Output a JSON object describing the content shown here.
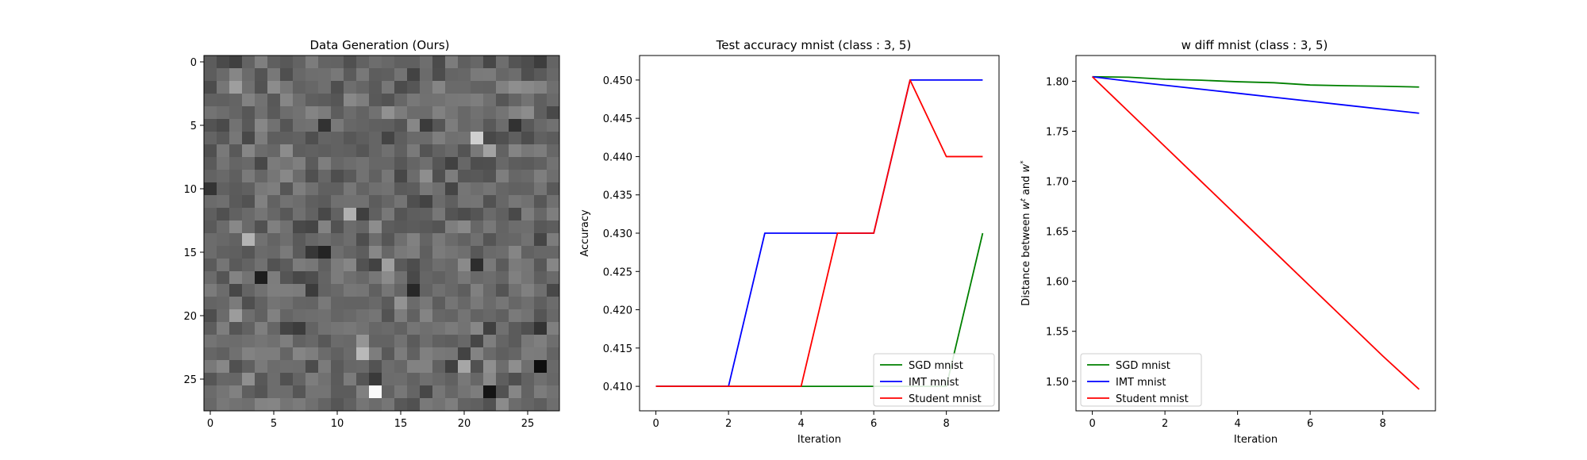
{
  "chart_data": [
    {
      "type": "heatmap",
      "title": "Data Generation (Ours)",
      "xlabel": "",
      "ylabel": "",
      "grid_size": [
        28,
        28
      ],
      "colormap": "gray",
      "xlim": [
        -0.5,
        27.5
      ],
      "ylim": [
        27.5,
        -0.5
      ],
      "xticks": [
        0,
        5,
        10,
        15,
        20,
        25
      ],
      "yticks": [
        0,
        5,
        10,
        15,
        20,
        25
      ],
      "values": [
        [
          92,
          74,
          64,
          99,
          127,
          95,
          88,
          99,
          124,
          100,
          99,
          80,
          98,
          109,
          104,
          96,
          96,
          110,
          75,
          124,
          95,
          103,
          71,
          110,
          84,
          77,
          61,
          100
        ],
        [
          93,
          106,
          134,
          107,
          84,
          120,
          79,
          104,
          110,
          111,
          120,
          91,
          120,
          93,
          95,
          115,
          67,
          107,
          77,
          101,
          103,
          122,
          123,
          103,
          109,
          79,
          90,
          104
        ],
        [
          76,
          118,
          158,
          112,
          82,
          140,
          119,
          98,
          103,
          111,
          79,
          110,
          102,
          90,
          119,
          76,
          86,
          112,
          133,
          106,
          106,
          99,
          98,
          129,
          142,
          137,
          131,
          111
        ],
        [
          97,
          96,
          100,
          130,
          114,
          88,
          134,
          111,
          95,
          92,
          86,
          136,
          126,
          89,
          83,
          103,
          120,
          113,
          114,
          120,
          121,
          126,
          112,
          86,
          101,
          115,
          95,
          106
        ],
        [
          115,
          109,
          101,
          87,
          112,
          90,
          109,
          114,
          132,
          124,
          93,
          108,
          99,
          113,
          145,
          124,
          108,
          108,
          129,
          117,
          104,
          113,
          106,
          116,
          131,
          140,
          95,
          73
        ],
        [
          83,
          74,
          114,
          89,
          135,
          113,
          85,
          112,
          114,
          50,
          121,
          103,
          100,
          96,
          95,
          85,
          135,
          59,
          86,
          125,
          104,
          110,
          89,
          108,
          50,
          89,
          105,
          113
        ],
        [
          100,
          89,
          119,
          72,
          125,
          94,
          95,
          98,
          79,
          100,
          98,
          87,
          94,
          101,
          68,
          94,
          106,
          107,
          126,
          112,
          114,
          208,
          72,
          80,
          95,
          77,
          97,
          92
        ],
        [
          80,
          121,
          89,
          134,
          108,
          103,
          140,
          94,
          97,
          94,
          98,
          96,
          86,
          101,
          112,
          96,
          122,
          84,
          98,
          106,
          84,
          121,
          162,
          98,
          132,
          120,
          125,
          103
        ],
        [
          90,
          116,
          101,
          105,
          72,
          123,
          117,
          127,
          91,
          126,
          103,
          109,
          114,
          103,
          103,
          87,
          101,
          111,
          86,
          65,
          103,
          78,
          79,
          104,
          93,
          91,
          97,
          114
        ],
        [
          99,
          105,
          95,
          122,
          102,
          118,
          136,
          108,
          80,
          103,
          78,
          90,
          114,
          97,
          119,
          71,
          108,
          142,
          80,
          125,
          87,
          89,
          83,
          126,
          103,
          106,
          126,
          110
        ],
        [
          52,
          97,
          91,
          96,
          121,
          126,
          86,
          126,
          112,
          96,
          96,
          119,
          100,
          111,
          114,
          90,
          93,
          120,
          111,
          69,
          117,
          110,
          117,
          102,
          97,
          98,
          117,
          89
        ],
        [
          107,
          111,
          90,
          82,
          129,
          98,
          114,
          109,
          95,
          91,
          112,
          113,
          113,
          92,
          102,
          116,
          79,
          67,
          107,
          95,
          116,
          117,
          82,
          103,
          119,
          113,
          87,
          112
        ],
        [
          95,
          80,
          97,
          106,
          117,
          103,
          88,
          112,
          98,
          72,
          98,
          176,
          63,
          96,
          120,
          85,
          94,
          96,
          119,
          84,
          76,
          85,
          106,
          96,
          73,
          125,
          103,
          126
        ],
        [
          90,
          107,
          136,
          106,
          81,
          128,
          113,
          73,
          69,
          131,
          82,
          108,
          101,
          141,
          93,
          89,
          92,
          89,
          84,
          126,
          137,
          103,
          120,
          100,
          109,
          110,
          88,
          93
        ],
        [
          108,
          104,
          98,
          180,
          113,
          100,
          110,
          90,
          103,
          109,
          101,
          109,
          78,
          109,
          86,
          111,
          129,
          100,
          121,
          107,
          98,
          112,
          85,
          101,
          103,
          114,
          69,
          124
        ],
        [
          108,
          97,
          95,
          86,
          107,
          104,
          122,
          91,
          55,
          36,
          110,
          101,
          93,
          135,
          103,
          121,
          126,
          95,
          123,
          117,
          111,
          88,
          106,
          109,
          133,
          98,
          103,
          103
        ],
        [
          91,
          117,
          90,
          99,
          113,
          82,
          92,
          124,
          119,
          96,
          124,
          134,
          82,
          66,
          160,
          90,
          77,
          98,
          110,
          105,
          138,
          45,
          121,
          91,
          123,
          118,
          88,
          134
        ],
        [
          107,
          85,
          131,
          115,
          30,
          125,
          85,
          72,
          78,
          100,
          124,
          111,
          104,
          119,
          139,
          112,
          73,
          102,
          97,
          105,
          120,
          105,
          109,
          101,
          128,
          117,
          95,
          106
        ],
        [
          123,
          108,
          71,
          100,
          113,
          126,
          126,
          124,
          60,
          99,
          105,
          119,
          117,
          96,
          118,
          101,
          40,
          99,
          112,
          104,
          94,
          128,
          105,
          84,
          113,
          128,
          111,
          72
        ],
        [
          100,
          103,
          123,
          79,
          98,
          116,
          112,
          101,
          100,
          121,
          100,
          99,
          99,
          105,
          91,
          147,
          107,
          120,
          93,
          117,
          104,
          121,
          107,
          118,
          103,
          111,
          95,
          108
        ],
        [
          78,
          107,
          156,
          110,
          97,
          129,
          101,
          108,
          110,
          112,
          101,
          105,
          112,
          117,
          83,
          125,
          97,
          132,
          103,
          100,
          116,
          99,
          104,
          96,
          122,
          115,
          85,
          104
        ],
        [
          93,
          126,
          85,
          98,
          127,
          102,
          68,
          60,
          99,
          113,
          117,
          120,
          114,
          103,
          106,
          98,
          117,
          111,
          115,
          123,
          115,
          135,
          64,
          112,
          91,
          80,
          51,
          127
        ],
        [
          116,
          109,
          108,
          112,
          117,
          112,
          126,
          98,
          104,
          88,
          107,
          105,
          149,
          99,
          99,
          114,
          91,
          109,
          97,
          94,
          104,
          70,
          126,
          101,
          91,
          120,
          127,
          110
        ],
        [
          102,
          96,
          112,
          130,
          125,
          125,
          101,
          133,
          126,
          107,
          97,
          107,
          185,
          125,
          89,
          124,
          97,
          128,
          120,
          118,
          67,
          131,
          106,
          95,
          101,
          124,
          123,
          100
        ],
        [
          121,
          135,
          80,
          96,
          122,
          108,
          110,
          109,
          76,
          123,
          90,
          103,
          105,
          83,
          109,
          103,
          130,
          130,
          97,
          64,
          166,
          81,
          143,
          109,
          142,
          111,
          14,
          105
        ],
        [
          86,
          103,
          102,
          143,
          88,
          109,
          81,
          100,
          125,
          113,
          91,
          123,
          85,
          58,
          108,
          109,
          98,
          111,
          105,
          97,
          120,
          103,
          137,
          94,
          79,
          98,
          112,
          103
        ],
        [
          107,
          117,
          129,
          95,
          85,
          109,
          109,
          86,
          116,
          116,
          92,
          92,
          128,
          250,
          99,
          119,
          101,
          71,
          118,
          103,
          116,
          125,
          20,
          82,
          134,
          99,
          124,
          114
        ],
        [
          104,
          120,
          114,
          111,
          131,
          133,
          117,
          123,
          112,
          100,
          86,
          97,
          117,
          108,
          118,
          88,
          81,
          121,
          115,
          126,
          99,
          96,
          82,
          139,
          108,
          101,
          94,
          110
        ]
      ]
    },
    {
      "type": "line",
      "title": "Test accuracy mnist (class : 3, 5)",
      "xlabel": "Iteration",
      "ylabel": "Accuracy",
      "xlim": [
        -0.45,
        9.45
      ],
      "ylim": [
        0.4068,
        0.4532
      ],
      "xticks": [
        0,
        2,
        4,
        6,
        8
      ],
      "yticks": [
        0.41,
        0.415,
        0.42,
        0.425,
        0.43,
        0.435,
        0.44,
        0.445,
        0.45
      ],
      "ytick_labels": [
        "0.410",
        "0.415",
        "0.420",
        "0.425",
        "0.430",
        "0.435",
        "0.440",
        "0.445",
        "0.450"
      ],
      "x": [
        0,
        1,
        2,
        3,
        4,
        5,
        6,
        7,
        8,
        9
      ],
      "legend": "lower-right",
      "series": [
        {
          "name": "SGD mnist",
          "color": "#008000",
          "values": [
            0.41,
            0.41,
            0.41,
            0.41,
            0.41,
            0.41,
            0.41,
            0.41,
            0.41,
            0.43
          ]
        },
        {
          "name": "IMT mnist",
          "color": "#0000ff",
          "values": [
            0.41,
            0.41,
            0.41,
            0.43,
            0.43,
            0.43,
            0.43,
            0.45,
            0.45,
            0.45
          ]
        },
        {
          "name": "Student mnist",
          "color": "#ff0000",
          "values": [
            0.41,
            0.41,
            0.41,
            0.41,
            0.41,
            0.43,
            0.43,
            0.45,
            0.44,
            0.44
          ]
        }
      ]
    },
    {
      "type": "line",
      "title": "w diff mnist (class : 3, 5)",
      "xlabel": "Iteration",
      "ylabel": "Distance between w^t and w^*",
      "xlim": [
        -0.45,
        9.45
      ],
      "ylim": [
        1.4705,
        1.8257
      ],
      "xticks": [
        0,
        2,
        4,
        6,
        8
      ],
      "yticks": [
        1.5,
        1.55,
        1.6,
        1.65,
        1.7,
        1.75,
        1.8
      ],
      "ytick_labels": [
        "1.50",
        "1.55",
        "1.60",
        "1.65",
        "1.70",
        "1.75",
        "1.80"
      ],
      "x": [
        0,
        1,
        2,
        3,
        4,
        5,
        6,
        7,
        8,
        9
      ],
      "legend": "lower-left",
      "series": [
        {
          "name": "SGD mnist",
          "color": "#008000",
          "values": [
            1.8045,
            1.804,
            1.802,
            1.801,
            1.7995,
            1.7985,
            1.7962,
            1.7955,
            1.795,
            1.7942
          ]
        },
        {
          "name": "IMT mnist",
          "color": "#0000ff",
          "values": [
            1.8045,
            1.8,
            1.796,
            1.792,
            1.788,
            1.784,
            1.78,
            1.776,
            1.772,
            1.768
          ]
        },
        {
          "name": "Student mnist",
          "color": "#ff0000",
          "values": [
            1.8045,
            1.7696,
            1.7347,
            1.6998,
            1.6649,
            1.63,
            1.5951,
            1.5602,
            1.5253,
            1.492
          ]
        }
      ]
    }
  ]
}
